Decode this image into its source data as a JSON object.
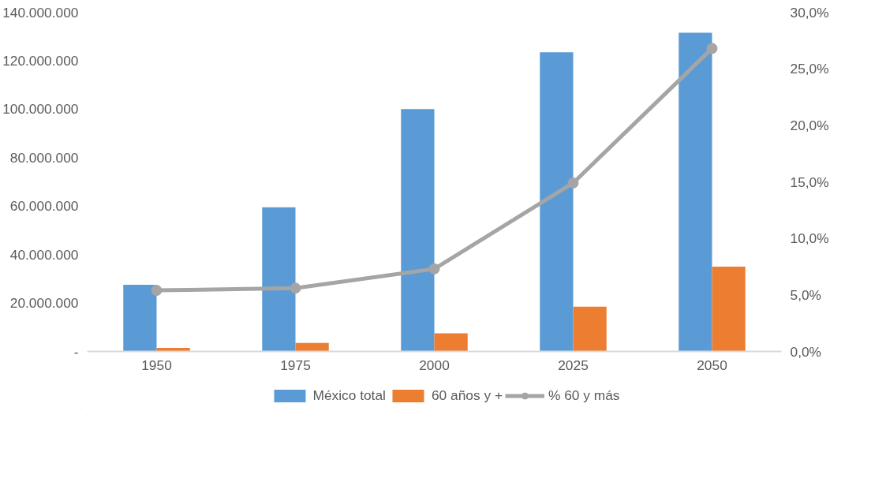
{
  "chart_data": {
    "type": "bar",
    "categories": [
      "1950",
      "1975",
      "2000",
      "2025",
      "2050"
    ],
    "series": [
      {
        "name": "México total",
        "color": "#5b9bd5",
        "values": [
          27500000,
          59500000,
          100000000,
          123500000,
          131500000
        ]
      },
      {
        "name": "60 años y +",
        "color": "#ed7d31",
        "values": [
          1500000,
          3500000,
          7500000,
          18500000,
          35000000
        ]
      },
      {
        "name": "% 60 y más",
        "color": "#a5a5a5",
        "type": "line",
        "axis": "y2",
        "marker": "circle",
        "values": [
          5.4,
          5.6,
          7.3,
          14.9,
          26.8
        ]
      }
    ],
    "ylim": [
      0,
      140000000
    ],
    "yticks": [
      {
        "value": 0,
        "label": "-"
      },
      {
        "value": 20000000,
        "label": "20.000.000"
      },
      {
        "value": 40000000,
        "label": "40.000.000"
      },
      {
        "value": 60000000,
        "label": "60.000.000"
      },
      {
        "value": 80000000,
        "label": "80.000.000"
      },
      {
        "value": 100000000,
        "label": "100.000.000"
      },
      {
        "value": 120000000,
        "label": "120.000.000"
      },
      {
        "value": 140000000,
        "label": "140.000.000"
      }
    ],
    "y2lim": [
      0,
      30
    ],
    "y2ticks": [
      {
        "value": 0,
        "label": "0,0%"
      },
      {
        "value": 5,
        "label": "5,0%"
      },
      {
        "value": 10,
        "label": "10,0%"
      },
      {
        "value": 15,
        "label": "15,0%"
      },
      {
        "value": 20,
        "label": "20,0%"
      },
      {
        "value": 25,
        "label": "25,0%"
      },
      {
        "value": 30,
        "label": "30,0%"
      }
    ],
    "grid": false,
    "legend": "bottom"
  }
}
